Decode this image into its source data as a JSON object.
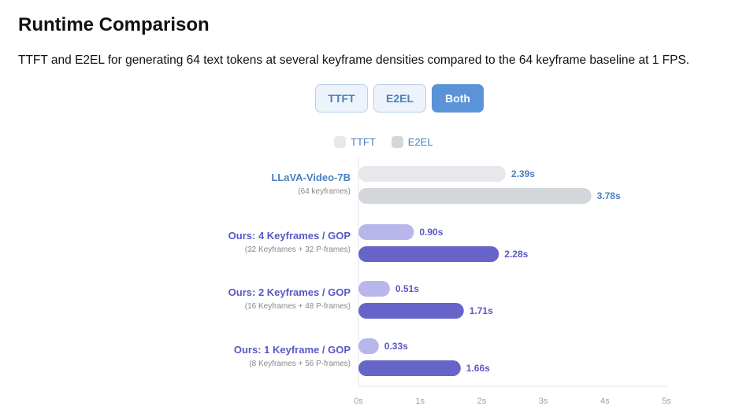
{
  "header": {
    "title": "Runtime Comparison",
    "subtitle": "TTFT and E2EL for generating 64 text tokens at several keyframe densities compared to the 64 keyframe baseline at 1 FPS."
  },
  "toggle": {
    "ttft_label": "TTFT",
    "e2el_label": "E2EL",
    "both_label": "Both",
    "active": "Both"
  },
  "legend": [
    {
      "name": "TTFT",
      "color": "#e6e8ec"
    },
    {
      "name": "E2EL",
      "color": "#d3d6db"
    }
  ],
  "colors": {
    "baseline_ttft": "#e6e8ec",
    "baseline_e2el": "#d3d6db",
    "ours_ttft": "#b8b6ea",
    "ours_e2el": "#6664c9",
    "baseline_text": "#4a7fc0",
    "ours_text": "#5a58c2"
  },
  "chart_data": {
    "type": "bar",
    "orientation": "horizontal",
    "categories": [
      {
        "name": "LLaVA-Video-7B",
        "sub": "(64 keyframes)",
        "kind": "baseline"
      },
      {
        "name": "Ours: 4 Keyframes / GOP",
        "sub": "(32 Keyframes + 32 P-frames)",
        "kind": "ours"
      },
      {
        "name": "Ours: 2 Keyframes / GOP",
        "sub": "(16 Keyframes + 48 P-frames)",
        "kind": "ours"
      },
      {
        "name": "Ours: 1 Keyframe / GOP",
        "sub": "(8 Keyframes + 56 P-frames)",
        "kind": "ours"
      }
    ],
    "series": [
      {
        "name": "TTFT",
        "values": [
          2.39,
          0.9,
          0.51,
          0.33
        ],
        "labels": [
          "2.39s",
          "0.90s",
          "0.51s",
          "0.33s"
        ]
      },
      {
        "name": "E2EL",
        "values": [
          3.78,
          2.28,
          1.71,
          1.66
        ],
        "labels": [
          "3.78s",
          "2.28s",
          "1.71s",
          "1.66s"
        ]
      }
    ],
    "xlim": [
      0,
      5
    ],
    "xticks": [
      "0s",
      "1s",
      "2s",
      "3s",
      "4s",
      "5s"
    ],
    "grid": false,
    "legend_position": "top-center"
  }
}
